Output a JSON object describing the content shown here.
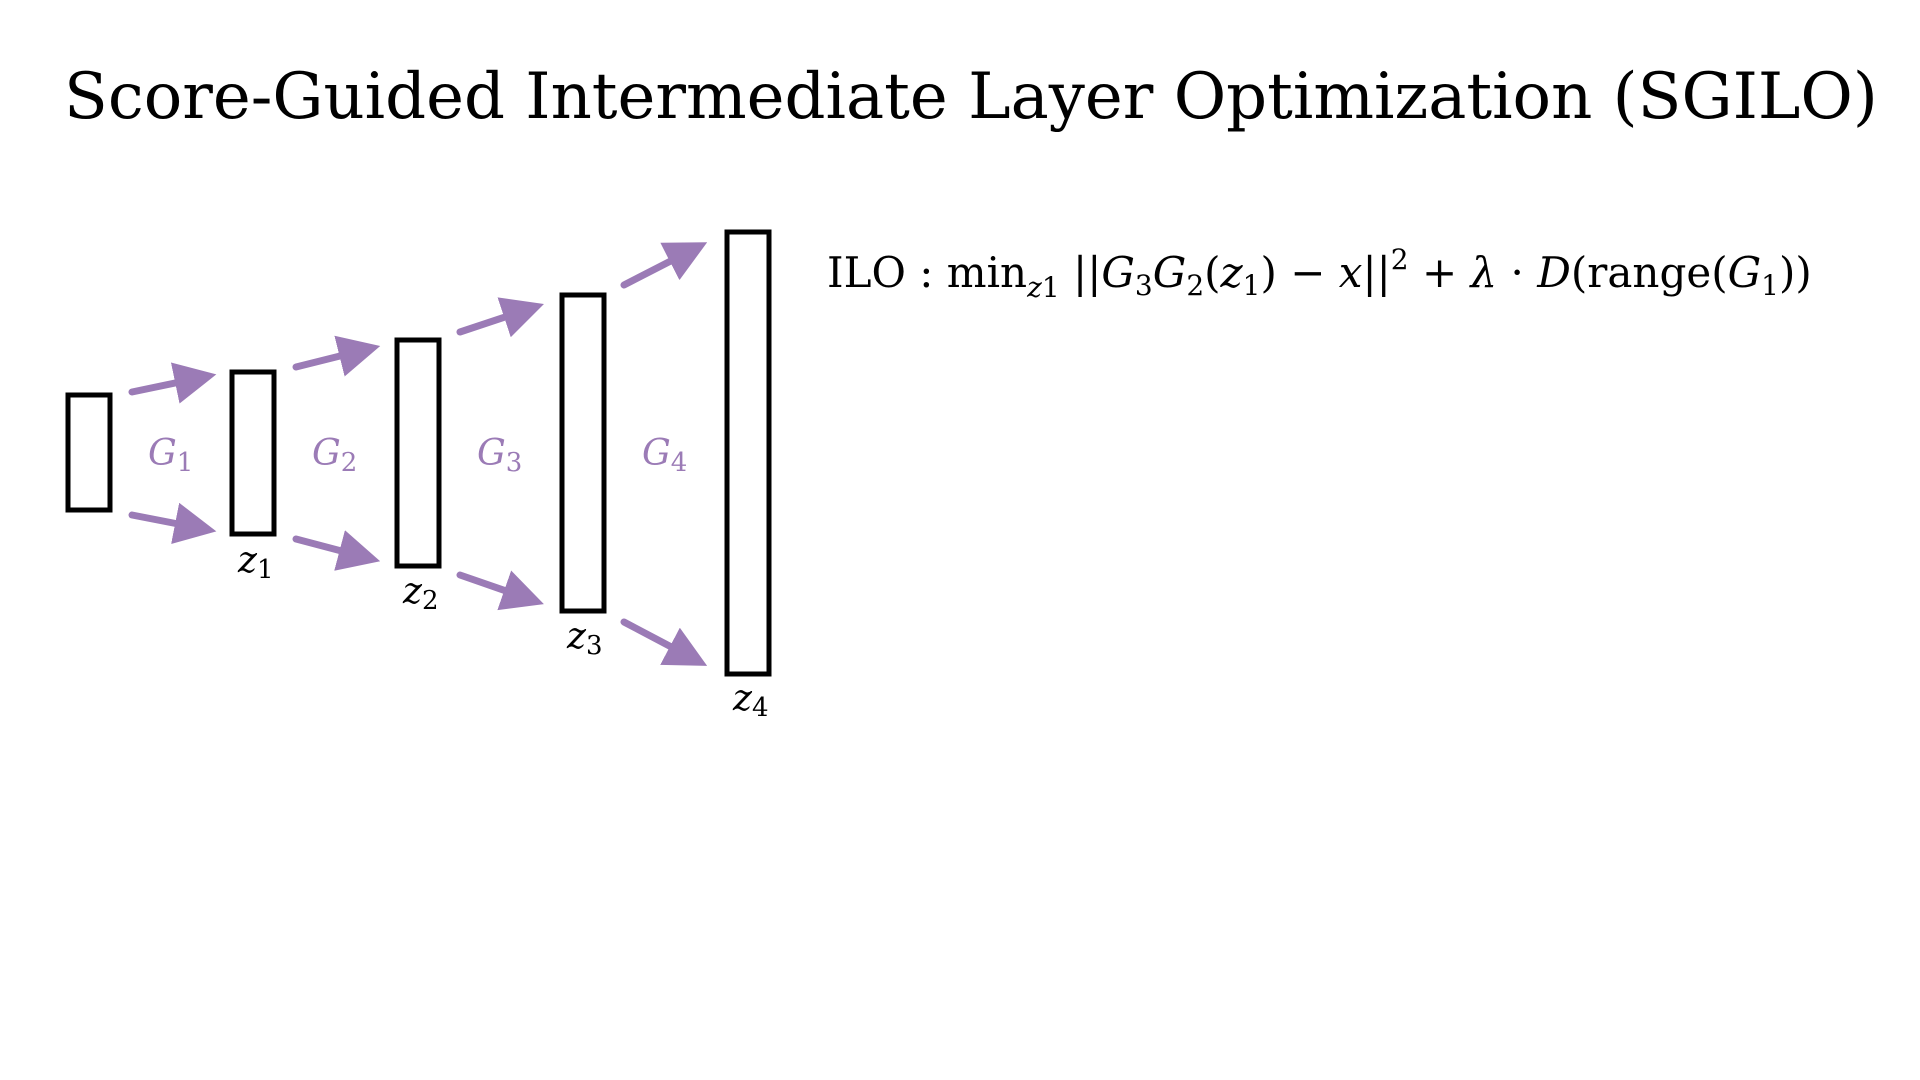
{
  "title": "Score-Guided Intermediate Layer Optimization (SGILO)",
  "colors": {
    "arrow": "#9b7bb6",
    "generator_label": "#9b7bb6",
    "box_stroke": "#000000",
    "text": "#000000"
  },
  "generators": [
    {
      "symbol": "G",
      "subscript": "1"
    },
    {
      "symbol": "G",
      "subscript": "2"
    },
    {
      "symbol": "G",
      "subscript": "3"
    },
    {
      "symbol": "G",
      "subscript": "4"
    }
  ],
  "latents": [
    {
      "symbol": "z",
      "subscript": "1"
    },
    {
      "symbol": "z",
      "subscript": "2"
    },
    {
      "symbol": "z",
      "subscript": "3"
    },
    {
      "symbol": "z",
      "subscript": "4"
    }
  ],
  "formula": {
    "name": "ILO",
    "colon": " : ",
    "min": "min",
    "min_var": "z",
    "min_var_sub": "1",
    "norm_open": "||",
    "g3": "G",
    "g3_sub": "3",
    "g2": "G",
    "g2_sub": "2",
    "arg_open": "(",
    "arg": "z",
    "arg_sub": "1",
    "arg_close": ")",
    "minus": " − ",
    "x": "x",
    "norm_close": "||",
    "power": "2",
    "plus": " + ",
    "lambda": "λ",
    "dot": " · ",
    "d": "D",
    "range_open": "(range(",
    "g1": "G",
    "g1_sub": "1",
    "range_close": "))"
  }
}
